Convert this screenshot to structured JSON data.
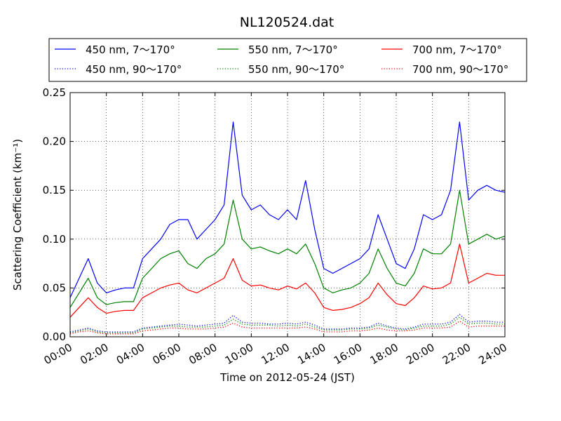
{
  "chart_data": {
    "type": "line",
    "title": "NL120524.dat",
    "xlabel": "Time on 2012-05-24 (JST)",
    "ylabel": "Scattering Coefficient (km⁻¹)",
    "xlim": [
      "00:00",
      "24:00"
    ],
    "ylim": [
      0,
      0.25
    ],
    "grid": true,
    "legend_position": "top",
    "x_ticks": [
      "00:00",
      "02:00",
      "04:00",
      "06:00",
      "08:00",
      "10:00",
      "12:00",
      "14:00",
      "16:00",
      "18:00",
      "20:00",
      "22:00",
      "24:00"
    ],
    "y_ticks": [
      "0.00",
      "0.05",
      "0.10",
      "0.15",
      "0.20",
      "0.25"
    ],
    "x": [
      "00:00",
      "00:30",
      "01:00",
      "01:30",
      "02:00",
      "02:30",
      "03:00",
      "03:30",
      "04:00",
      "04:30",
      "05:00",
      "05:30",
      "06:00",
      "06:30",
      "07:00",
      "07:30",
      "08:00",
      "08:30",
      "09:00",
      "09:30",
      "10:00",
      "10:30",
      "11:00",
      "11:30",
      "12:00",
      "12:30",
      "13:00",
      "13:30",
      "14:00",
      "14:30",
      "15:00",
      "15:30",
      "16:00",
      "16:30",
      "17:00",
      "17:30",
      "18:00",
      "18:30",
      "19:00",
      "19:30",
      "20:00",
      "20:30",
      "21:00",
      "21:30",
      "22:00",
      "22:30",
      "23:00",
      "23:30",
      "24:00"
    ],
    "series": [
      {
        "name": "450 nm, 7～170°",
        "color": "#0000ff",
        "style": "solid",
        "values": [
          0.04,
          0.06,
          0.08,
          0.055,
          0.045,
          0.048,
          0.05,
          0.05,
          0.08,
          0.09,
          0.1,
          0.115,
          0.12,
          0.12,
          0.1,
          0.11,
          0.12,
          0.135,
          0.22,
          0.145,
          0.13,
          0.135,
          0.125,
          0.12,
          0.13,
          0.12,
          0.16,
          0.11,
          0.07,
          0.065,
          0.07,
          0.075,
          0.08,
          0.09,
          0.125,
          0.1,
          0.075,
          0.07,
          0.09,
          0.125,
          0.12,
          0.125,
          0.15,
          0.22,
          0.14,
          0.15,
          0.155,
          0.15,
          0.148
        ]
      },
      {
        "name": "550 nm, 7～170°",
        "color": "#008000",
        "style": "solid",
        "values": [
          0.03,
          0.045,
          0.06,
          0.04,
          0.033,
          0.035,
          0.036,
          0.036,
          0.06,
          0.07,
          0.08,
          0.085,
          0.088,
          0.075,
          0.07,
          0.08,
          0.085,
          0.095,
          0.14,
          0.1,
          0.09,
          0.092,
          0.088,
          0.085,
          0.09,
          0.085,
          0.095,
          0.075,
          0.05,
          0.045,
          0.048,
          0.05,
          0.055,
          0.065,
          0.09,
          0.07,
          0.055,
          0.052,
          0.065,
          0.09,
          0.085,
          0.085,
          0.095,
          0.15,
          0.095,
          0.1,
          0.105,
          0.1,
          0.103
        ]
      },
      {
        "name": "700 nm, 7～170°",
        "color": "#ff0000",
        "style": "solid",
        "values": [
          0.02,
          0.03,
          0.04,
          0.03,
          0.024,
          0.026,
          0.027,
          0.027,
          0.04,
          0.045,
          0.05,
          0.053,
          0.055,
          0.048,
          0.045,
          0.05,
          0.055,
          0.06,
          0.08,
          0.058,
          0.052,
          0.053,
          0.05,
          0.048,
          0.052,
          0.049,
          0.055,
          0.045,
          0.03,
          0.027,
          0.028,
          0.03,
          0.034,
          0.04,
          0.055,
          0.043,
          0.034,
          0.032,
          0.04,
          0.052,
          0.049,
          0.05,
          0.055,
          0.095,
          0.055,
          0.06,
          0.065,
          0.063,
          0.063
        ]
      },
      {
        "name": "450 nm, 90～170°",
        "color": "#0000ff",
        "style": "dotted",
        "values": [
          0.005,
          0.007,
          0.009,
          0.006,
          0.005,
          0.005,
          0.005,
          0.005,
          0.009,
          0.01,
          0.011,
          0.012,
          0.013,
          0.012,
          0.011,
          0.012,
          0.013,
          0.014,
          0.022,
          0.015,
          0.014,
          0.014,
          0.013,
          0.013,
          0.014,
          0.013,
          0.015,
          0.012,
          0.008,
          0.008,
          0.008,
          0.009,
          0.009,
          0.01,
          0.014,
          0.011,
          0.009,
          0.008,
          0.01,
          0.013,
          0.013,
          0.013,
          0.015,
          0.023,
          0.015,
          0.016,
          0.016,
          0.015,
          0.015
        ]
      },
      {
        "name": "550 nm, 90～170°",
        "color": "#008000",
        "style": "dotted",
        "values": [
          0.004,
          0.006,
          0.008,
          0.005,
          0.004,
          0.004,
          0.004,
          0.004,
          0.008,
          0.009,
          0.01,
          0.011,
          0.011,
          0.01,
          0.01,
          0.01,
          0.011,
          0.012,
          0.018,
          0.013,
          0.012,
          0.012,
          0.012,
          0.011,
          0.012,
          0.011,
          0.013,
          0.01,
          0.007,
          0.007,
          0.007,
          0.008,
          0.008,
          0.009,
          0.012,
          0.01,
          0.008,
          0.007,
          0.009,
          0.011,
          0.011,
          0.011,
          0.013,
          0.02,
          0.013,
          0.014,
          0.014,
          0.013,
          0.013
        ]
      },
      {
        "name": "700 nm, 90～170°",
        "color": "#ff0000",
        "style": "dotted",
        "values": [
          0.003,
          0.005,
          0.006,
          0.004,
          0.003,
          0.003,
          0.003,
          0.003,
          0.006,
          0.007,
          0.008,
          0.009,
          0.009,
          0.008,
          0.008,
          0.008,
          0.009,
          0.01,
          0.014,
          0.01,
          0.009,
          0.009,
          0.009,
          0.009,
          0.009,
          0.009,
          0.01,
          0.008,
          0.005,
          0.005,
          0.005,
          0.006,
          0.006,
          0.007,
          0.009,
          0.007,
          0.006,
          0.006,
          0.007,
          0.009,
          0.009,
          0.009,
          0.01,
          0.016,
          0.01,
          0.011,
          0.011,
          0.011,
          0.011
        ]
      }
    ]
  }
}
